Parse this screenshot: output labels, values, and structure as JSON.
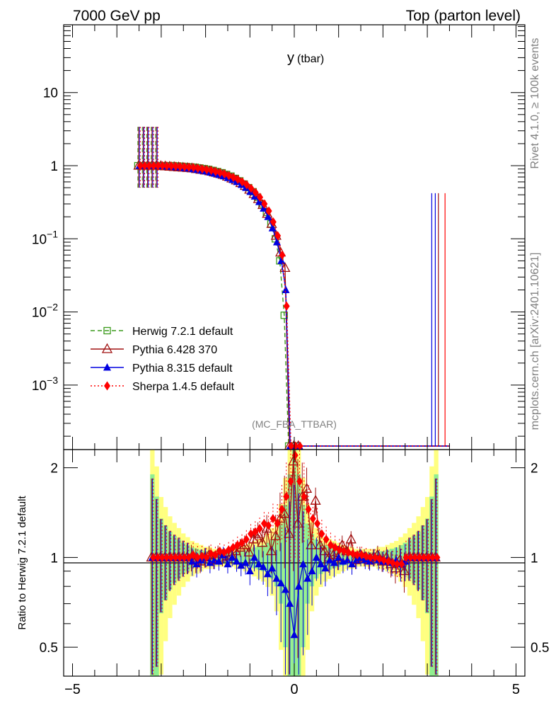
{
  "header": {
    "energy_label": "7000 GeV pp",
    "process_label": "Top (parton level)",
    "observable_main": "y",
    "observable_sub": "(tbar)",
    "analysis_id": "(MC_FBA_TTBAR)",
    "side_label_top": "Rivet 4.1.0, ≥ 100k events",
    "side_label_bottom": "mcplots.cern.ch [arXiv:2401.10621]"
  },
  "colors": {
    "herwig": "#3a9a1a",
    "pythia6": "#a01010",
    "pythia8": "#0000e0",
    "sherpa": "#ff0000",
    "band_inner": "#90ee90",
    "band_outer": "#ffff80"
  },
  "chart_data": [
    {
      "type": "line",
      "title": "y (tbar)",
      "xlabel": "",
      "ylabel": "",
      "xlim": [
        -5.2,
        5.2
      ],
      "ylim": [
        0.00015,
        80
      ],
      "yscale": "log",
      "y_tick_labels": [
        "10",
        "1",
        "10^-1",
        "10^-2",
        "10^-3"
      ],
      "legend": [
        "Herwig 7.2.1 default",
        "Pythia 6.428 370",
        "Pythia 8.315 default",
        "Sherpa 1.4.5 default"
      ],
      "legend_position": "middle-left",
      "x": [
        -3.5,
        -3.4,
        -3.3,
        -3.2,
        -3.1,
        -3.0,
        -2.9,
        -2.8,
        -2.7,
        -2.6,
        -2.5,
        -2.4,
        -2.3,
        -2.2,
        -2.1,
        -2.0,
        -1.9,
        -1.8,
        -1.7,
        -1.6,
        -1.5,
        -1.4,
        -1.3,
        -1.2,
        -1.1,
        -1.0,
        -0.9,
        -0.8,
        -0.7,
        -0.6,
        -0.5,
        -0.4,
        -0.3,
        -0.2,
        -0.1,
        0.0,
        0.1,
        0.2,
        0.3,
        0.4,
        0.5,
        0.6,
        0.7,
        0.8,
        0.9,
        1.0,
        1.1,
        1.2,
        1.3,
        1.4,
        1.5,
        1.6,
        1.7,
        1.8,
        1.9,
        2.0,
        2.1,
        2.2,
        2.3,
        2.4,
        2.5,
        2.6,
        2.7,
        2.8,
        2.9,
        3.0,
        3.1,
        3.2,
        3.3,
        3.4,
        3.5
      ],
      "series": [
        {
          "name": "Herwig 7.2.1 default",
          "marker": "open-square",
          "line": "dashed",
          "values": [
            1.0,
            1.0,
            1.0,
            1.0,
            1.0,
            1.0,
            1.0,
            1.0,
            1.0,
            0.99,
            0.98,
            0.97,
            0.96,
            0.95,
            0.93,
            0.91,
            0.89,
            0.86,
            0.83,
            0.8,
            0.76,
            0.72,
            0.67,
            0.62,
            0.56,
            0.5,
            0.44,
            0.37,
            0.3,
            0.23,
            0.16,
            0.1,
            0.05,
            0.009,
            0.00013,
            0.00013,
            0.00013,
            0.00013,
            0.00013,
            0.00013,
            0.00013,
            0.00013,
            0.00013,
            0.00013,
            0.00013,
            0.00013,
            0.00013,
            0.00013,
            0.00013,
            0.00013,
            0.00013,
            0.00013,
            0.00013,
            0.00013,
            0.00013,
            0.00013,
            0.00013,
            0.00013,
            0.00013,
            0.00013,
            0.00013,
            0.00013,
            0.00013,
            0.00013,
            0.00013,
            0.00013,
            0.00013,
            0.00013,
            0.00013,
            0.00013,
            0.00013
          ]
        },
        {
          "name": "Pythia 6.428 370",
          "marker": "open-triangle",
          "line": "solid",
          "values": [
            1.0,
            1.0,
            1.0,
            1.0,
            1.0,
            0.99,
            0.98,
            0.97,
            0.96,
            0.95,
            0.94,
            0.93,
            0.92,
            0.9,
            0.88,
            0.86,
            0.84,
            0.81,
            0.78,
            0.75,
            0.71,
            0.67,
            0.63,
            0.58,
            0.53,
            0.47,
            0.41,
            0.35,
            0.29,
            0.22,
            0.16,
            0.11,
            0.065,
            0.04,
            0.00013,
            0.00013,
            0.00013,
            0.00013,
            0.00013,
            0.00013,
            0.00013,
            0.00013,
            0.00013,
            0.00013,
            0.00013,
            0.00013,
            0.00013,
            0.00013,
            0.00013,
            0.00013,
            0.00013,
            0.00013,
            0.00013,
            0.00013,
            0.00013,
            0.00013,
            0.00013,
            0.00013,
            0.00013,
            0.00013,
            0.00013,
            0.00013,
            0.00013,
            0.00013,
            0.00013,
            0.00013,
            0.00013,
            0.00013,
            0.00013,
            0.00013,
            0.00013
          ]
        },
        {
          "name": "Pythia 8.315 default",
          "marker": "filled-triangle",
          "line": "solid",
          "values": [
            1.0,
            1.0,
            1.0,
            1.0,
            1.0,
            0.99,
            0.98,
            0.97,
            0.96,
            0.95,
            0.93,
            0.92,
            0.9,
            0.88,
            0.86,
            0.84,
            0.81,
            0.78,
            0.75,
            0.72,
            0.68,
            0.64,
            0.6,
            0.55,
            0.5,
            0.44,
            0.38,
            0.32,
            0.26,
            0.2,
            0.14,
            0.09,
            0.05,
            0.02,
            0.00013,
            0.00013,
            0.00013,
            0.00013,
            0.00013,
            0.00013,
            0.00013,
            0.00013,
            0.00013,
            0.00013,
            0.00013,
            0.00013,
            0.00013,
            0.00013,
            0.00013,
            0.00013,
            0.00013,
            0.00013,
            0.00013,
            0.00013,
            0.00013,
            0.00013,
            0.00013,
            0.00013,
            0.00013,
            0.00013,
            0.00013,
            0.00013,
            0.00013,
            0.00013,
            0.00013,
            0.00013,
            0.00013,
            0.00013,
            0.00013,
            0.00013,
            0.00013
          ]
        },
        {
          "name": "Sherpa 1.4.5 default",
          "marker": "filled-diamond",
          "line": "dotted",
          "values": [
            1.0,
            1.0,
            1.0,
            1.0,
            1.0,
            1.0,
            0.99,
            0.99,
            0.98,
            0.97,
            0.96,
            0.95,
            0.94,
            0.92,
            0.9,
            0.88,
            0.86,
            0.83,
            0.8,
            0.77,
            0.73,
            0.69,
            0.65,
            0.6,
            0.55,
            0.49,
            0.43,
            0.37,
            0.3,
            0.24,
            0.17,
            0.11,
            0.06,
            0.012,
            0.00013,
            0.00013,
            0.00013,
            0.00013,
            0.00013,
            0.00013,
            0.00013,
            0.00013,
            0.00013,
            0.00013,
            0.00013,
            0.00013,
            0.00013,
            0.00013,
            0.00013,
            0.00013,
            0.00013,
            0.00013,
            0.00013,
            0.00013,
            0.00013,
            0.00013,
            0.00013,
            0.00013,
            0.00013,
            0.00013,
            0.00013,
            0.00013,
            0.00013,
            0.00013,
            0.00013,
            0.00013,
            0.00013,
            0.00013,
            0.00013,
            0.00013,
            0.00013
          ]
        }
      ]
    },
    {
      "type": "line",
      "title": "",
      "xlabel": "",
      "ylabel": "Ratio to Herwig 7.2.1 default",
      "xlim": [
        -5.2,
        5.2
      ],
      "ylim": [
        0.4,
        2.3
      ],
      "x_tick_labels": [
        "−5",
        "0",
        "5"
      ],
      "y_tick_labels": [
        "2",
        "1",
        "0.5"
      ],
      "reference_line": 1.0,
      "x": [
        -3.2,
        -3.1,
        -3.0,
        -2.9,
        -2.8,
        -2.7,
        -2.6,
        -2.5,
        -2.4,
        -2.3,
        -2.2,
        -2.1,
        -2.0,
        -1.9,
        -1.8,
        -1.7,
        -1.6,
        -1.5,
        -1.4,
        -1.3,
        -1.2,
        -1.1,
        -1.0,
        -0.9,
        -0.8,
        -0.7,
        -0.6,
        -0.5,
        -0.4,
        -0.3,
        -0.2,
        -0.1,
        0.0,
        0.1,
        0.2,
        0.3,
        0.4,
        0.5,
        0.6,
        0.7,
        0.8,
        0.9,
        1.0,
        1.1,
        1.2,
        1.3,
        1.4,
        1.5,
        1.6,
        1.7,
        1.8,
        1.9,
        2.0,
        2.1,
        2.2,
        2.3,
        2.4,
        2.5,
        2.6,
        2.7,
        2.8,
        2.9,
        3.0,
        3.1,
        3.2
      ],
      "band_inner_halfwidth": [
        0.9,
        0.6,
        0.35,
        0.28,
        0.22,
        0.18,
        0.15,
        0.12,
        0.1,
        0.08,
        0.07,
        0.06,
        0.05,
        0.05,
        0.04,
        0.04,
        0.04,
        0.04,
        0.04,
        0.05,
        0.05,
        0.06,
        0.07,
        0.08,
        0.09,
        0.1,
        0.12,
        0.15,
        0.2,
        0.3,
        0.5,
        0.9,
        1.3,
        0.9,
        0.5,
        0.3,
        0.2,
        0.15,
        0.12,
        0.1,
        0.09,
        0.08,
        0.07,
        0.06,
        0.05,
        0.05,
        0.04,
        0.04,
        0.04,
        0.04,
        0.04,
        0.05,
        0.05,
        0.06,
        0.07,
        0.08,
        0.1,
        0.12,
        0.15,
        0.18,
        0.22,
        0.28,
        0.35,
        0.6,
        0.9
      ],
      "series": [
        {
          "name": "Pythia 6.428 370",
          "values": [
            1.0,
            1.0,
            1.0,
            1.0,
            1.0,
            1.0,
            1.0,
            1.0,
            1.0,
            1.0,
            0.98,
            0.97,
            1.0,
            1.02,
            0.98,
            1.03,
            1.0,
            1.01,
            1.02,
            1.05,
            1.08,
            1.1,
            1.04,
            1.15,
            1.2,
            1.12,
            1.25,
            1.05,
            1.18,
            1.35,
            1.4,
            1.2,
            2.1,
            1.3,
            1.6,
            1.7,
            1.1,
            1.55,
            1.1,
            1.05,
            1.0,
            1.02,
            1.0,
            1.1,
            1.05,
            1.15,
            0.98,
            1.02,
            1.0,
            0.98,
            1.0,
            1.02,
            0.97,
            1.0,
            0.95,
            0.92,
            0.98,
            0.9,
            1.0,
            1.0,
            1.0,
            1.0,
            1.0,
            1.0,
            1.0
          ]
        },
        {
          "name": "Pythia 8.315 default",
          "values": [
            1.0,
            1.0,
            1.0,
            1.0,
            1.0,
            1.0,
            1.0,
            1.0,
            1.0,
            0.97,
            0.95,
            0.98,
            1.0,
            0.96,
            0.98,
            0.97,
            1.02,
            0.95,
            1.0,
            0.97,
            0.94,
            0.96,
            0.9,
            1.0,
            0.95,
            0.93,
            0.88,
            0.92,
            0.85,
            0.82,
            0.78,
            0.7,
            0.55,
            0.8,
            0.95,
            0.85,
            0.9,
            1.0,
            0.95,
            0.92,
            0.98,
            0.96,
            1.0,
            0.97,
            0.98,
            0.95,
            0.98,
            1.0,
            0.98,
            0.97,
            1.0,
            0.98,
            0.97,
            0.98,
            0.96,
            0.98,
            0.95,
            0.97,
            1.0,
            1.0,
            1.0,
            1.0,
            1.0,
            1.0,
            1.0
          ]
        },
        {
          "name": "Sherpa 1.4.5 default",
          "values": [
            1.0,
            1.0,
            1.0,
            1.0,
            1.0,
            1.0,
            1.0,
            1.0,
            1.0,
            1.02,
            1.0,
            1.01,
            1.0,
            1.03,
            1.02,
            1.05,
            1.04,
            1.06,
            1.08,
            1.1,
            1.12,
            1.15,
            1.2,
            1.22,
            1.25,
            1.3,
            1.28,
            1.35,
            1.3,
            1.45,
            1.6,
            1.8,
            2.2,
            1.8,
            1.6,
            1.45,
            1.35,
            1.3,
            1.2,
            1.15,
            1.1,
            1.08,
            1.06,
            1.05,
            1.04,
            1.03,
            1.02,
            1.02,
            1.01,
            1.0,
            1.0,
            0.99,
            0.98,
            0.97,
            0.96,
            0.95,
            0.95,
            1.0,
            1.0,
            1.0,
            1.0,
            1.0,
            1.0,
            1.0,
            1.0
          ]
        }
      ]
    }
  ]
}
